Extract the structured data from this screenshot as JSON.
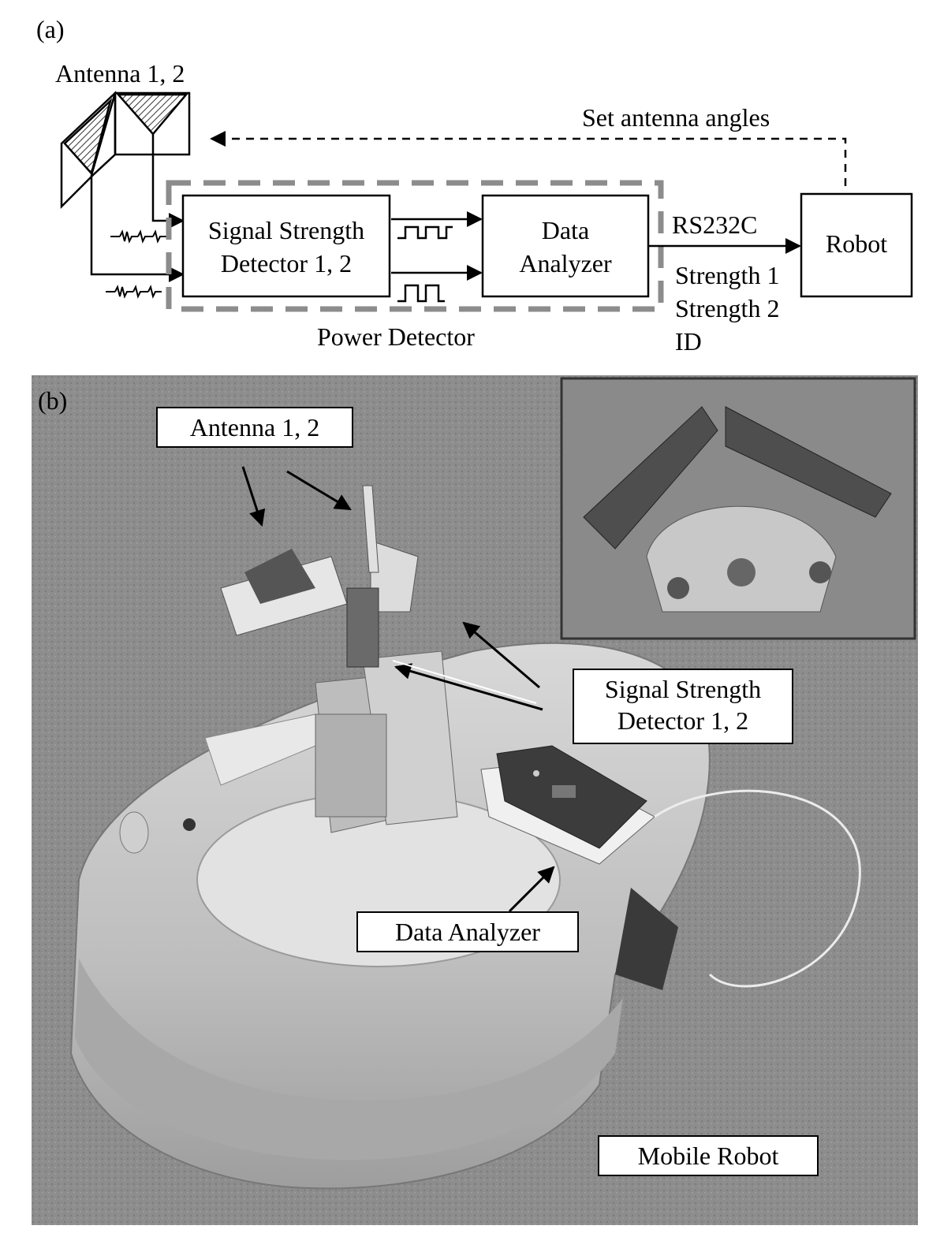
{
  "panel_a": {
    "label": "(a)",
    "antenna_label": "Antenna 1, 2",
    "feedback_label": "Set antenna angles",
    "ssd_line1": "Signal Strength",
    "ssd_line2": "Detector 1, 2",
    "analyzer_line1": "Data",
    "analyzer_line2": "Analyzer",
    "power_detector_label": "Power Detector",
    "link_label": "RS232C",
    "link_payload": [
      "Strength 1",
      "Strength 2",
      "ID"
    ],
    "robot_label": "Robot"
  },
  "panel_b": {
    "label": "(b)",
    "callouts": {
      "antenna": "Antenna 1, 2",
      "ssd_line1": "Signal Strength",
      "ssd_line2": "Detector 1, 2",
      "analyzer": "Data Analyzer",
      "mobile_robot": "Mobile Robot"
    }
  }
}
